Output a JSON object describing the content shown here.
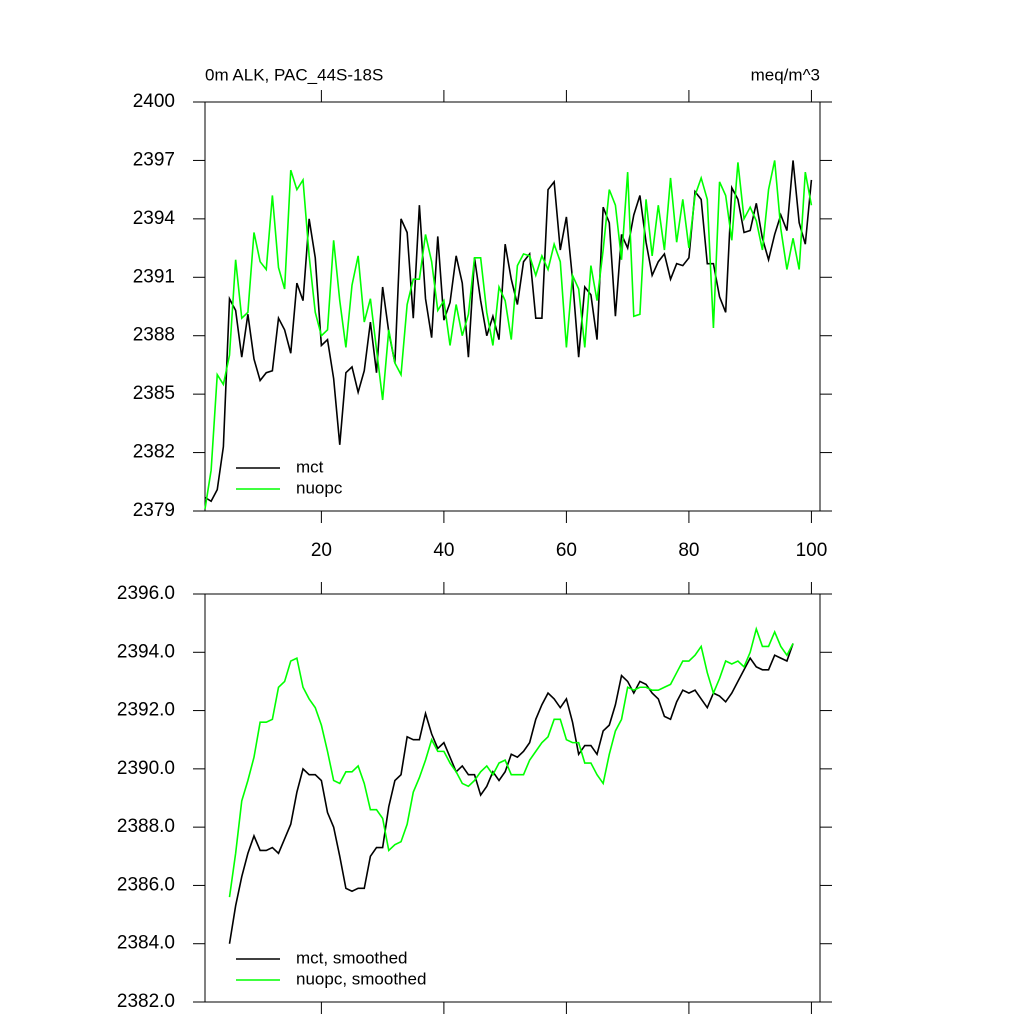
{
  "chart_data": [
    {
      "type": "line",
      "title": "0m ALK, PAC_44S-18S",
      "subtitle": "meq/m^3",
      "x": [
        1,
        2,
        3,
        4,
        5,
        6,
        7,
        8,
        9,
        10,
        11,
        12,
        13,
        14,
        15,
        16,
        17,
        18,
        19,
        20,
        21,
        22,
        23,
        24,
        25,
        26,
        27,
        28,
        29,
        30,
        31,
        32,
        33,
        34,
        35,
        36,
        37,
        38,
        39,
        40,
        41,
        42,
        43,
        44,
        45,
        46,
        47,
        48,
        49,
        50,
        51,
        52,
        53,
        54,
        55,
        56,
        57,
        58,
        59,
        60,
        61,
        62,
        63,
        64,
        65,
        66,
        67,
        68,
        69,
        70,
        71,
        72,
        73,
        74,
        75,
        76,
        77,
        78,
        79,
        80,
        81,
        82,
        83,
        84,
        85,
        86,
        87,
        88,
        89,
        90,
        91,
        92,
        93,
        94,
        95,
        96,
        97,
        98,
        99,
        100
      ],
      "series": [
        {
          "name": "mct",
          "color": "#000000",
          "values": [
            2379.7,
            2379.5,
            2380.1,
            2382.3,
            2389.9,
            2389.3,
            2386.9,
            2389.1,
            2386.8,
            2385.7,
            2386.1,
            2386.2,
            2388.9,
            2388.3,
            2387.1,
            2390.7,
            2389.8,
            2394.0,
            2392.0,
            2387.5,
            2387.8,
            2385.8,
            2382.4,
            2386.1,
            2386.4,
            2385.1,
            2386.2,
            2388.7,
            2386.1,
            2390.5,
            2388.2,
            2386.6,
            2394.0,
            2393.3,
            2388.9,
            2394.7,
            2389.9,
            2387.9,
            2393.1,
            2388.8,
            2389.7,
            2392.1,
            2390.7,
            2386.9,
            2392.0,
            2389.8,
            2388.0,
            2389.0,
            2387.8,
            2392.7,
            2390.9,
            2389.6,
            2391.8,
            2392.2,
            2388.9,
            2388.9,
            2395.5,
            2395.9,
            2392.4,
            2394.1,
            2390.9,
            2386.9,
            2390.5,
            2390.1,
            2387.8,
            2394.6,
            2393.8,
            2389.0,
            2393.2,
            2392.5,
            2394.2,
            2395.2,
            2392.8,
            2391.1,
            2391.8,
            2392.2,
            2390.9,
            2391.7,
            2391.6,
            2392.0,
            2395.4,
            2395.0,
            2391.7,
            2391.7,
            2390.0,
            2389.2,
            2395.6,
            2395.0,
            2393.3,
            2393.4,
            2394.8,
            2393.0,
            2391.9,
            2393.2,
            2394.2,
            2393.4,
            2397.0,
            2393.8,
            2392.7,
            2396.0
          ]
        },
        {
          "name": "nuopc",
          "color": "#00ff00",
          "values": [
            2379.1,
            2381.1,
            2386.0,
            2385.5,
            2387.0,
            2391.9,
            2388.9,
            2389.2,
            2393.3,
            2391.8,
            2391.4,
            2395.2,
            2391.5,
            2390.4,
            2396.5,
            2395.5,
            2396.0,
            2392.1,
            2389.2,
            2388.0,
            2388.3,
            2392.9,
            2389.8,
            2387.4,
            2390.6,
            2392.1,
            2388.7,
            2389.9,
            2387.3,
            2384.7,
            2388.3,
            2386.6,
            2386.0,
            2389.6,
            2390.9,
            2390.9,
            2393.2,
            2391.8,
            2389.3,
            2389.8,
            2387.5,
            2389.6,
            2388.0,
            2389.1,
            2392.0,
            2392.0,
            2389.2,
            2387.5,
            2390.5,
            2389.8,
            2387.8,
            2391.6,
            2392.2,
            2392.1,
            2391.1,
            2392.1,
            2391.4,
            2392.7,
            2391.8,
            2387.4,
            2391.1,
            2390.4,
            2387.4,
            2391.6,
            2389.8,
            2392.4,
            2395.5,
            2394.7,
            2391.9,
            2396.4,
            2389.0,
            2389.1,
            2395.0,
            2392.1,
            2394.7,
            2392.4,
            2396.1,
            2392.8,
            2395.0,
            2392.5,
            2395.2,
            2396.1,
            2395.0,
            2388.4,
            2395.9,
            2395.2,
            2392.9,
            2396.9,
            2394.0,
            2394.6,
            2393.9,
            2392.4,
            2395.5,
            2397.0,
            2393.5,
            2391.4,
            2393.0,
            2391.4,
            2396.4,
            2394.7
          ]
        }
      ],
      "xlim": [
        1,
        101.4
      ],
      "xticks": [
        20,
        40,
        60,
        80,
        100
      ],
      "show_xtick_labels": true,
      "ylim": [
        2379,
        2400
      ],
      "yticks": [
        2379,
        2382,
        2385,
        2388,
        2391,
        2394,
        2397,
        2400
      ],
      "grid": false
    },
    {
      "type": "line",
      "x": [
        5,
        6,
        7,
        8,
        9,
        10,
        11,
        12,
        13,
        14,
        15,
        16,
        17,
        18,
        19,
        20,
        21,
        22,
        23,
        24,
        25,
        26,
        27,
        28,
        29,
        30,
        31,
        32,
        33,
        34,
        35,
        36,
        37,
        38,
        39,
        40,
        41,
        42,
        43,
        44,
        45,
        46,
        47,
        48,
        49,
        50,
        51,
        52,
        53,
        54,
        55,
        56,
        57,
        58,
        59,
        60,
        61,
        62,
        63,
        64,
        65,
        66,
        67,
        68,
        69,
        70,
        71,
        72,
        73,
        74,
        75,
        76,
        77,
        78,
        79,
        80,
        81,
        82,
        83,
        84,
        85,
        86,
        87,
        88,
        89,
        90,
        91,
        92,
        93,
        94,
        95,
        96,
        97
      ],
      "series": [
        {
          "name": "mct, smoothed",
          "color": "#000000",
          "values": [
            2384.0,
            2385.3,
            2386.3,
            2387.1,
            2387.7,
            2387.2,
            2387.2,
            2387.3,
            2387.1,
            2387.6,
            2388.1,
            2389.2,
            2390.0,
            2389.8,
            2389.8,
            2389.6,
            2388.5,
            2388.0,
            2387.0,
            2385.9,
            2385.8,
            2385.9,
            2385.9,
            2387.0,
            2387.3,
            2387.3,
            2388.7,
            2389.6,
            2389.8,
            2391.1,
            2391.0,
            2391.0,
            2391.9,
            2391.2,
            2390.7,
            2390.9,
            2390.4,
            2389.9,
            2390.1,
            2389.8,
            2389.8,
            2389.1,
            2389.4,
            2389.9,
            2389.6,
            2389.9,
            2390.5,
            2390.4,
            2390.6,
            2390.9,
            2391.7,
            2392.2,
            2392.6,
            2392.4,
            2392.1,
            2392.4,
            2391.6,
            2390.5,
            2390.8,
            2390.8,
            2390.5,
            2391.3,
            2391.5,
            2392.2,
            2393.2,
            2393.0,
            2392.6,
            2393.0,
            2392.9,
            2392.6,
            2392.4,
            2391.8,
            2391.7,
            2392.3,
            2392.7,
            2392.6,
            2392.7,
            2392.4,
            2392.1,
            2392.6,
            2392.5,
            2392.3,
            2392.6,
            2393.0,
            2393.4,
            2393.8,
            2393.5,
            2393.4,
            2393.4,
            2393.9,
            2393.8,
            2393.7,
            2394.3
          ]
        },
        {
          "name": "nuopc, smoothed",
          "color": "#00ff00",
          "values": [
            2385.6,
            2387.1,
            2388.9,
            2389.6,
            2390.4,
            2391.6,
            2391.6,
            2391.7,
            2392.8,
            2393.0,
            2393.7,
            2393.8,
            2392.8,
            2392.4,
            2392.1,
            2391.5,
            2390.6,
            2389.6,
            2389.5,
            2389.9,
            2389.9,
            2390.1,
            2389.5,
            2388.6,
            2388.6,
            2388.3,
            2387.2,
            2387.4,
            2387.5,
            2388.1,
            2389.2,
            2389.7,
            2390.3,
            2391.0,
            2390.6,
            2390.6,
            2390.2,
            2389.9,
            2389.5,
            2389.4,
            2389.6,
            2389.9,
            2390.1,
            2389.8,
            2390.2,
            2390.3,
            2389.8,
            2389.8,
            2389.8,
            2390.3,
            2390.6,
            2390.9,
            2391.1,
            2391.7,
            2391.7,
            2391.0,
            2390.9,
            2390.9,
            2390.2,
            2390.2,
            2389.8,
            2389.5,
            2390.5,
            2391.3,
            2391.7,
            2392.8,
            2392.7,
            2392.8,
            2392.8,
            2392.7,
            2392.7,
            2392.8,
            2392.9,
            2393.3,
            2393.7,
            2393.7,
            2393.9,
            2394.2,
            2393.3,
            2392.6,
            2393.1,
            2393.7,
            2393.6,
            2393.7,
            2393.5,
            2394.0,
            2394.8,
            2394.2,
            2394.2,
            2394.7,
            2394.2,
            2393.9,
            2394.3
          ]
        }
      ],
      "xlim": [
        1,
        101.4
      ],
      "xticks": [
        20,
        40,
        60,
        80,
        100
      ],
      "show_xtick_labels": false,
      "ylim": [
        2382,
        2396
      ],
      "yticks": [
        {
          "value": 2382,
          "label": "2382.0"
        },
        {
          "value": 2384,
          "label": "2384.0"
        },
        {
          "value": 2386,
          "label": "2386.0"
        },
        {
          "value": 2388,
          "label": "2388.0"
        },
        {
          "value": 2390,
          "label": "2390.0"
        },
        {
          "value": 2392,
          "label": "2392.0"
        },
        {
          "value": 2394,
          "label": "2394.0"
        },
        {
          "value": 2396,
          "label": "2396.0"
        }
      ],
      "grid": false
    }
  ]
}
